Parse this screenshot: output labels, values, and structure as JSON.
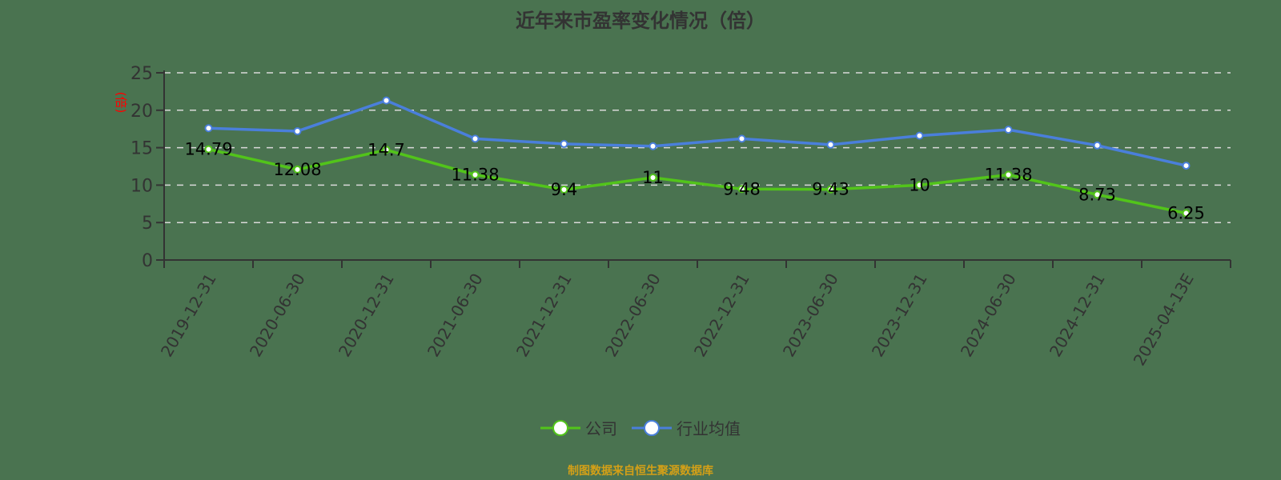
{
  "title": "近年来市盈率变化情况（倍）",
  "source_note": "制图数据来自恒生聚源数据库",
  "colors": {
    "background": "#4a7350",
    "company": "#52c41a",
    "industry": "#4a7fdb",
    "grid": "#d9d9d9",
    "axis": "#333333",
    "ylabel": "#ff0000",
    "source": "#d4a017"
  },
  "legend": {
    "items": [
      {
        "label": "公司",
        "color": "#52c41a"
      },
      {
        "label": "行业均值",
        "color": "#4a7fdb"
      }
    ]
  },
  "chart_data": {
    "type": "line",
    "title": "近年来市盈率变化情况（倍）",
    "xlabel": "",
    "ylabel": "(倍)",
    "ylim": [
      0,
      25
    ],
    "yticks": [
      0,
      5,
      10,
      15,
      20,
      25
    ],
    "grid": true,
    "legend_position": "bottom",
    "categories": [
      "2019-12-31",
      "2020-06-30",
      "2020-12-31",
      "2021-06-30",
      "2021-12-31",
      "2022-06-30",
      "2022-12-31",
      "2023-06-30",
      "2023-12-31",
      "2024-06-30",
      "2024-12-31",
      "2025-04-13E"
    ],
    "series": [
      {
        "name": "公司",
        "values": [
          14.79,
          12.08,
          14.7,
          11.38,
          9.4,
          11,
          9.48,
          9.43,
          10,
          11.38,
          8.73,
          6.25
        ],
        "labels": [
          "14.79",
          "12.08",
          "14.7",
          "11.38",
          "9.4",
          "11",
          "9.48",
          "9.43",
          "10",
          "11.38",
          "8.73",
          "6.25"
        ]
      },
      {
        "name": "行业均值",
        "values": [
          17.6,
          17.2,
          21.3,
          16.2,
          15.5,
          15.2,
          16.2,
          15.4,
          16.6,
          17.4,
          15.3,
          12.6
        ]
      }
    ]
  }
}
